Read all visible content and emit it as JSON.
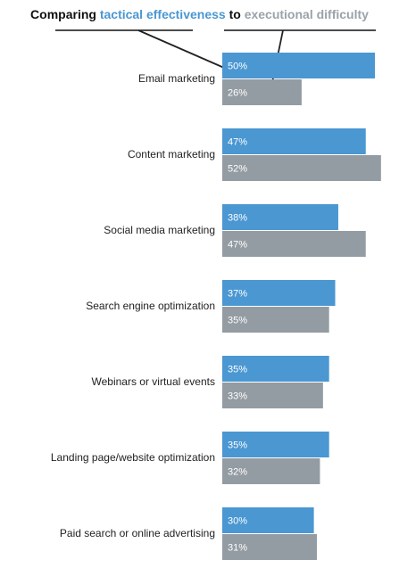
{
  "chart_data": {
    "type": "bar",
    "orientation": "horizontal",
    "title": {
      "pre": "Comparing",
      "effectiveness": "tactical effectiveness",
      "mid": "to",
      "difficulty": "executional difficulty"
    },
    "categories": [
      "Email marketing",
      "Content marketing",
      "Social media marketing",
      "Search engine optimization",
      "Webinars or virtual events",
      "Landing page/website optimization",
      "Paid search or online advertising"
    ],
    "series": [
      {
        "key": "effectiveness",
        "color": "#4a97d2",
        "values": [
          50,
          47,
          38,
          37,
          35,
          35,
          30
        ]
      },
      {
        "key": "difficulty",
        "color": "#949ca3",
        "values": [
          26,
          52,
          47,
          35,
          33,
          32,
          31
        ]
      }
    ],
    "value_suffix": "%",
    "xlim": [
      0,
      52
    ],
    "grid": false,
    "legend": "title"
  }
}
